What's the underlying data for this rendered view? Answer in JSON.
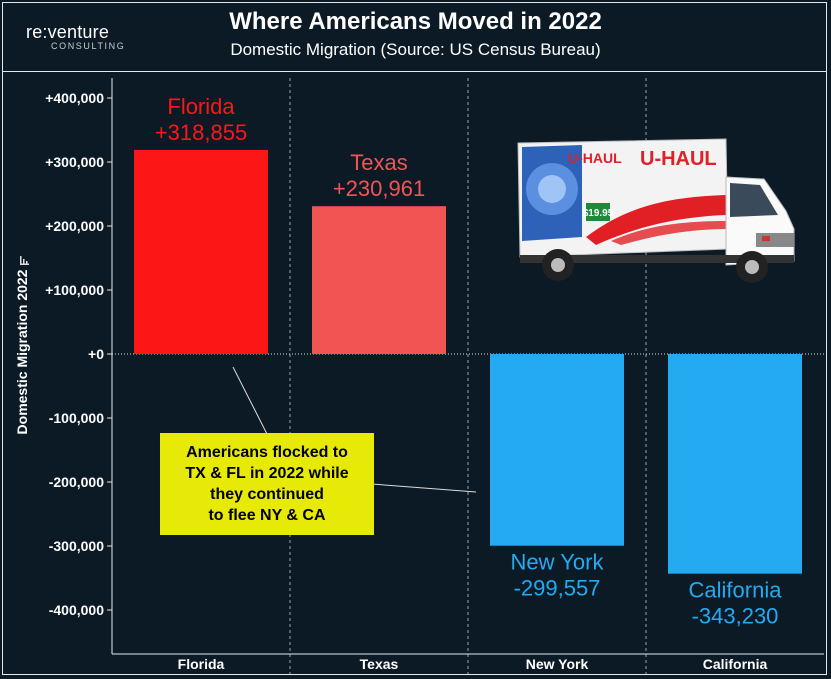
{
  "header": {
    "title": "Where Americans Moved in 2022",
    "subtitle": "Domestic Migration (Source: US Census Bureau)"
  },
  "logo": {
    "name": "re:venture",
    "tagline": "CONSULTING"
  },
  "annotation": {
    "lines": [
      "Americans flocked to",
      "TX & FL in 2022 while",
      "they continued",
      "to flee NY & CA"
    ]
  },
  "image": {
    "description_icon": "uhaul-truck-image",
    "brand_text": "U-HAUL",
    "price_badge": "$19.95"
  },
  "chart_data": {
    "type": "bar",
    "title": "Where Americans Moved in 2022",
    "subtitle": "Domestic Migration (Source: US Census Bureau)",
    "ylabel": "Domestic Migration 2022",
    "categories": [
      "Florida",
      "Texas",
      "New York",
      "California"
    ],
    "values": [
      318855,
      230961,
      -299557,
      -343230
    ],
    "value_labels": [
      "+318,855",
      "+230,961",
      "-299,557",
      "-343,230"
    ],
    "bar_colors": [
      "#fd1616",
      "#f25454",
      "#24aaf0",
      "#24aaf0"
    ],
    "label_colors": [
      "#fd1616",
      "#f25454",
      "#24aaf0",
      "#24aaf0"
    ],
    "yticks": [
      400000,
      300000,
      200000,
      100000,
      0,
      -100000,
      -200000,
      -300000,
      -400000
    ],
    "ytick_labels": [
      "+400,000",
      "+300,000",
      "+200,000",
      "+100,000",
      "+0",
      "-100,000",
      "-200,000",
      "-300,000",
      "-400,000"
    ],
    "ylim": [
      -465000,
      425000
    ],
    "grid": "vertical-dashed",
    "zero_line": "dotted"
  }
}
